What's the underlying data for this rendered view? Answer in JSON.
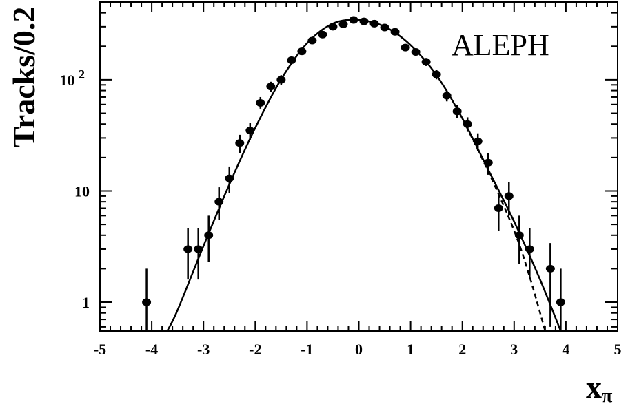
{
  "chart_data": {
    "type": "scatter",
    "title": "",
    "annotation": "ALEPH",
    "xlabel": "x",
    "xlabel_subscript": "π",
    "ylabel": "Tracks/0.2",
    "xlim": [
      -5,
      5
    ],
    "ylim": [
      0.55,
      500
    ],
    "yscale": "log",
    "grid": false,
    "x_ticks": [
      "-5",
      "-4",
      "-3",
      "-2",
      "-1",
      "0",
      "1",
      "2",
      "3",
      "4",
      "5"
    ],
    "y_ticks": [
      {
        "value": 1,
        "label": "1"
      },
      {
        "value": 10,
        "label": "10"
      },
      {
        "value": 100,
        "label": "10",
        "exponent": "2"
      }
    ],
    "series": [
      {
        "kind": "points_with_errors",
        "points": [
          {
            "x": -4.1,
            "y": 1,
            "lo": 0.5,
            "hi": 2.0
          },
          {
            "x": -3.3,
            "y": 3,
            "lo": 1.6,
            "hi": 4.6
          },
          {
            "x": -3.1,
            "y": 3,
            "lo": 1.6,
            "hi": 4.6
          },
          {
            "x": -2.9,
            "y": 4,
            "lo": 2.3,
            "hi": 6.0
          },
          {
            "x": -2.7,
            "y": 8,
            "lo": 5.5,
            "hi": 10.8
          },
          {
            "x": -2.5,
            "y": 13,
            "lo": 9.6,
            "hi": 16.6
          },
          {
            "x": -2.3,
            "y": 27,
            "lo": 22,
            "hi": 32
          },
          {
            "x": -2.1,
            "y": 35,
            "lo": 29,
            "hi": 41
          },
          {
            "x": -1.9,
            "y": 62,
            "lo": 55,
            "hi": 70
          },
          {
            "x": -1.7,
            "y": 87,
            "lo": 78,
            "hi": 96
          },
          {
            "x": -1.5,
            "y": 100,
            "lo": 90,
            "hi": 110
          },
          {
            "x": -1.3,
            "y": 150,
            "lo": 138,
            "hi": 162
          },
          {
            "x": -1.1,
            "y": 180,
            "lo": 167,
            "hi": 193
          },
          {
            "x": -0.9,
            "y": 225,
            "lo": 210,
            "hi": 240
          },
          {
            "x": -0.7,
            "y": 255,
            "lo": 239,
            "hi": 271
          },
          {
            "x": -0.5,
            "y": 300,
            "lo": 283,
            "hi": 317
          },
          {
            "x": -0.3,
            "y": 315,
            "lo": 297,
            "hi": 333
          },
          {
            "x": -0.1,
            "y": 345,
            "lo": 326,
            "hi": 364
          },
          {
            "x": 0.1,
            "y": 335,
            "lo": 317,
            "hi": 353
          },
          {
            "x": 0.3,
            "y": 320,
            "lo": 302,
            "hi": 338
          },
          {
            "x": 0.5,
            "y": 295,
            "lo": 278,
            "hi": 312
          },
          {
            "x": 0.7,
            "y": 270,
            "lo": 254,
            "hi": 286
          },
          {
            "x": 0.9,
            "y": 195,
            "lo": 181,
            "hi": 209
          },
          {
            "x": 1.1,
            "y": 178,
            "lo": 165,
            "hi": 191
          },
          {
            "x": 1.3,
            "y": 145,
            "lo": 133,
            "hi": 157
          },
          {
            "x": 1.5,
            "y": 112,
            "lo": 101,
            "hi": 123
          },
          {
            "x": 1.7,
            "y": 72,
            "lo": 64,
            "hi": 80
          },
          {
            "x": 1.9,
            "y": 52,
            "lo": 45,
            "hi": 59
          },
          {
            "x": 2.1,
            "y": 40,
            "lo": 34,
            "hi": 46
          },
          {
            "x": 2.3,
            "y": 28,
            "lo": 23,
            "hi": 33
          },
          {
            "x": 2.5,
            "y": 18,
            "lo": 14,
            "hi": 22
          },
          {
            "x": 2.7,
            "y": 7,
            "lo": 4.4,
            "hi": 9.6
          },
          {
            "x": 2.9,
            "y": 9,
            "lo": 6.0,
            "hi": 12.0
          },
          {
            "x": 3.1,
            "y": 4,
            "lo": 2.2,
            "hi": 6.0
          },
          {
            "x": 3.3,
            "y": 3,
            "lo": 1.6,
            "hi": 4.6
          },
          {
            "x": 3.7,
            "y": 2,
            "lo": 0.6,
            "hi": 3.4
          },
          {
            "x": 3.9,
            "y": 1,
            "lo": 0.5,
            "hi": 2.0
          }
        ]
      },
      {
        "kind": "curve",
        "style": "solid",
        "x": [
          -3.7,
          -3.5,
          -3.0,
          -2.5,
          -2.0,
          -1.5,
          -1.0,
          -0.5,
          0.0,
          0.5,
          1.0,
          1.5,
          2.0,
          2.5,
          3.0,
          3.5,
          3.9
        ],
        "y": [
          0.55,
          0.85,
          3.2,
          11.5,
          37,
          101,
          213,
          320,
          345,
          300,
          205,
          110,
          45,
          15.5,
          5.3,
          1.6,
          0.55
        ]
      },
      {
        "kind": "curve",
        "style": "dashed",
        "x": [
          2.0,
          2.5,
          3.0,
          3.3,
          3.6
        ],
        "y": [
          45,
          15.0,
          4.4,
          1.7,
          0.55
        ]
      }
    ]
  }
}
